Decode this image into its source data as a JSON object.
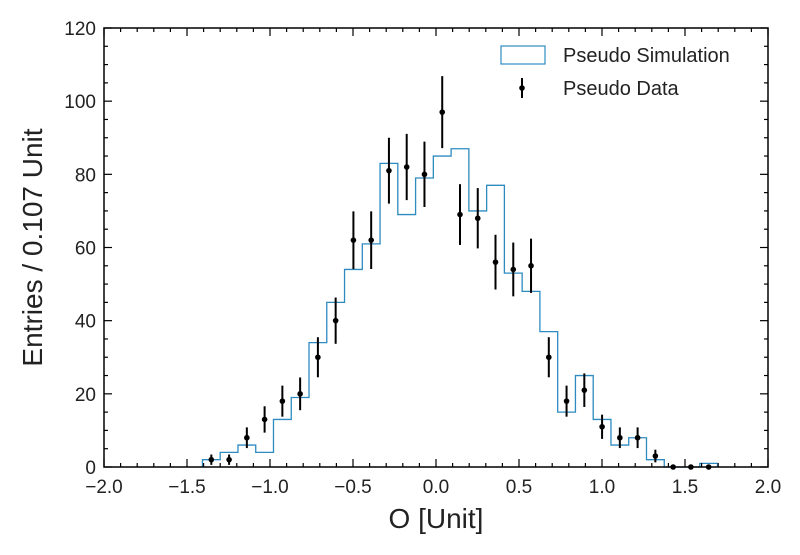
{
  "chart_data": {
    "type": "histogram",
    "xlabel": "O [Unit]",
    "ylabel": "Entries / 0.107 Unit",
    "xlim": [
      -2.0,
      2.0
    ],
    "ylim": [
      0,
      120
    ],
    "x_ticks": [
      -2.0,
      -1.5,
      -1.0,
      -0.5,
      0.0,
      0.5,
      1.0,
      1.5,
      2.0
    ],
    "x_tick_labels": [
      "−2.0",
      "−1.5",
      "−1.0",
      "−0.5",
      "0.0",
      "0.5",
      "1.0",
      "1.5",
      "2.0"
    ],
    "y_ticks": [
      0,
      20,
      40,
      60,
      80,
      100,
      120
    ],
    "y_tick_labels": [
      "0",
      "20",
      "40",
      "60",
      "80",
      "100",
      "120"
    ],
    "grid": false,
    "legend": {
      "position": "top-right",
      "entries": [
        "Pseudo Simulation",
        "Pseudo Data"
      ]
    },
    "colors": {
      "simulation": "#2e8bc0",
      "data": "#000000"
    },
    "bin_edges": [
      -1.407,
      -1.3,
      -1.193,
      -1.086,
      -0.979,
      -0.872,
      -0.765,
      -0.658,
      -0.551,
      -0.444,
      -0.337,
      -0.23,
      -0.123,
      -0.016,
      0.091,
      0.198,
      0.305,
      0.412,
      0.519,
      0.626,
      0.733,
      0.84,
      0.947,
      1.054,
      1.161,
      1.268,
      1.375,
      1.482,
      1.589,
      1.696
    ],
    "series": [
      {
        "name": "Pseudo Simulation",
        "type": "step",
        "values": [
          2,
          4,
          6,
          4,
          13,
          19,
          34,
          45,
          54,
          61,
          83,
          69,
          79,
          85,
          87,
          70,
          77,
          53,
          48,
          37,
          15,
          25,
          13,
          6,
          8,
          2,
          0,
          0,
          1
        ]
      },
      {
        "name": "Pseudo Data",
        "type": "errorbar",
        "values": [
          2,
          2,
          8,
          13,
          18,
          20,
          30,
          40,
          62,
          62,
          81,
          82,
          80,
          97,
          69,
          68,
          56,
          54,
          55,
          30,
          18,
          21,
          11,
          8,
          8,
          3,
          0,
          0,
          0
        ]
      }
    ]
  }
}
